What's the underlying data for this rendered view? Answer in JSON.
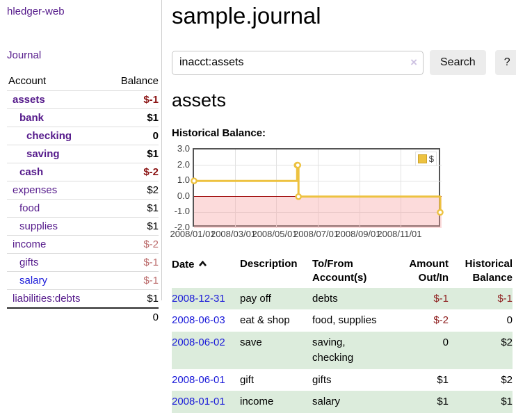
{
  "sidebar": {
    "brand": "hledger-web",
    "nav_journal": "Journal",
    "accounts_header": {
      "account": "Account",
      "balance": "Balance"
    },
    "accounts": [
      {
        "name": "assets",
        "balance": "$-1"
      },
      {
        "name": "bank",
        "balance": "$1"
      },
      {
        "name": "checking",
        "balance": "0"
      },
      {
        "name": "saving",
        "balance": "$1"
      },
      {
        "name": "cash",
        "balance": "$-2"
      },
      {
        "name": "expenses",
        "balance": "$2"
      },
      {
        "name": "food",
        "balance": "$1"
      },
      {
        "name": "supplies",
        "balance": "$1"
      },
      {
        "name": "income",
        "balance": "$-2"
      },
      {
        "name": "gifts",
        "balance": "$-1"
      },
      {
        "name": "salary",
        "balance": "$-1"
      },
      {
        "name": "liabilities:debts",
        "balance": "$1"
      }
    ],
    "total": "0"
  },
  "header": {
    "title": "sample.journal"
  },
  "search": {
    "value": "inacct:assets",
    "clear_icon": "×",
    "button_label": "Search",
    "help_label": "?"
  },
  "account_page": {
    "title": "assets",
    "chart_label": "Historical Balance:"
  },
  "chart_data": {
    "type": "line",
    "title": "Historical Balance:",
    "series": [
      {
        "name": "$",
        "color": "#edc240",
        "step": true,
        "points": [
          [
            "2008-01-01",
            1
          ],
          [
            "2008-06-01",
            2
          ],
          [
            "2008-06-02",
            2
          ],
          [
            "2008-06-03",
            0
          ],
          [
            "2008-12-31",
            -1
          ]
        ]
      }
    ],
    "x_range": [
      "2008-01-01",
      "2008-12-31"
    ],
    "ylim": [
      -2,
      3
    ],
    "y_tick_values": [
      3,
      2,
      1,
      0,
      -1,
      -2
    ],
    "y_ticks": [
      "3.0",
      "2.0",
      "1.0",
      "0.0",
      "-1.0",
      "-2.0"
    ],
    "x_tick_dates": [
      "2008-01-01",
      "2008-03-01",
      "2008-05-01",
      "2008-07-01",
      "2008-09-01",
      "2008-11-01"
    ],
    "x_ticks": [
      "2008/01/01",
      "2008/03/01",
      "2008/05/01",
      "2008/07/01",
      "2008/09/01",
      "2008/11/01"
    ],
    "grid": true,
    "legend": {
      "label": "$",
      "color": "#edc240",
      "position": "top-right"
    },
    "negative_region_color": "rgba(246,160,160,0.38)",
    "zero_line_color": "#9b0000"
  },
  "register": {
    "sort": {
      "column": "Date",
      "direction": "asc"
    },
    "columns": {
      "date": "Date",
      "description": "Description",
      "accounts": "To/From Account(s)",
      "amount": "Amount Out/In",
      "balance": "Historical Balance"
    },
    "rows": [
      {
        "date": "2008-12-31",
        "description": "pay off",
        "accounts": "debts",
        "amount": "$-1",
        "balance": "$-1"
      },
      {
        "date": "2008-06-03",
        "description": "eat & shop",
        "accounts": "food, supplies",
        "amount": "$-2",
        "balance": "0"
      },
      {
        "date": "2008-06-02",
        "description": "save",
        "accounts": "saving, checking",
        "amount": "0",
        "balance": "$2"
      },
      {
        "date": "2008-06-01",
        "description": "gift",
        "accounts": "gifts",
        "amount": "$1",
        "balance": "$2"
      },
      {
        "date": "2008-01-01",
        "description": "income",
        "accounts": "salary",
        "amount": "$1",
        "balance": "$1"
      }
    ]
  }
}
